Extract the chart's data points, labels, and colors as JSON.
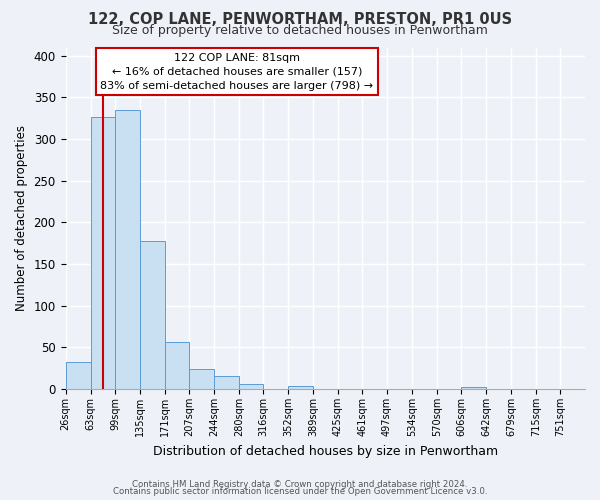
{
  "title": "122, COP LANE, PENWORTHAM, PRESTON, PR1 0US",
  "subtitle": "Size of property relative to detached houses in Penwortham",
  "xlabel": "Distribution of detached houses by size in Penwortham",
  "ylabel": "Number of detached properties",
  "bin_labels": [
    "26sqm",
    "63sqm",
    "99sqm",
    "135sqm",
    "171sqm",
    "207sqm",
    "244sqm",
    "280sqm",
    "316sqm",
    "352sqm",
    "389sqm",
    "425sqm",
    "461sqm",
    "497sqm",
    "534sqm",
    "570sqm",
    "606sqm",
    "642sqm",
    "679sqm",
    "715sqm",
    "751sqm"
  ],
  "bar_heights": [
    33,
    327,
    335,
    178,
    57,
    24,
    16,
    6,
    0,
    4,
    0,
    0,
    0,
    0,
    0,
    0,
    3,
    0,
    0,
    0,
    0
  ],
  "bar_color": "#c9dff2",
  "bar_edge_color": "#5b9bd5",
  "vertical_line_x": 81,
  "annotation_text_line1": "122 COP LANE: 81sqm",
  "annotation_text_line2": "← 16% of detached houses are smaller (157)",
  "annotation_text_line3": "83% of semi-detached houses are larger (798) →",
  "annotation_box_facecolor": "#ffffff",
  "annotation_box_edgecolor": "#cc0000",
  "vertical_line_color": "#cc0000",
  "footer_line1": "Contains HM Land Registry data © Crown copyright and database right 2024.",
  "footer_line2": "Contains public sector information licensed under the Open Government Licence v3.0.",
  "ylim": [
    0,
    410
  ],
  "yticks": [
    0,
    50,
    100,
    150,
    200,
    250,
    300,
    350,
    400
  ],
  "background_color": "#eef2f8",
  "bin_edges": [
    26,
    63,
    99,
    135,
    171,
    207,
    244,
    280,
    316,
    352,
    389,
    425,
    461,
    497,
    534,
    570,
    606,
    642,
    679,
    715,
    751,
    787
  ]
}
